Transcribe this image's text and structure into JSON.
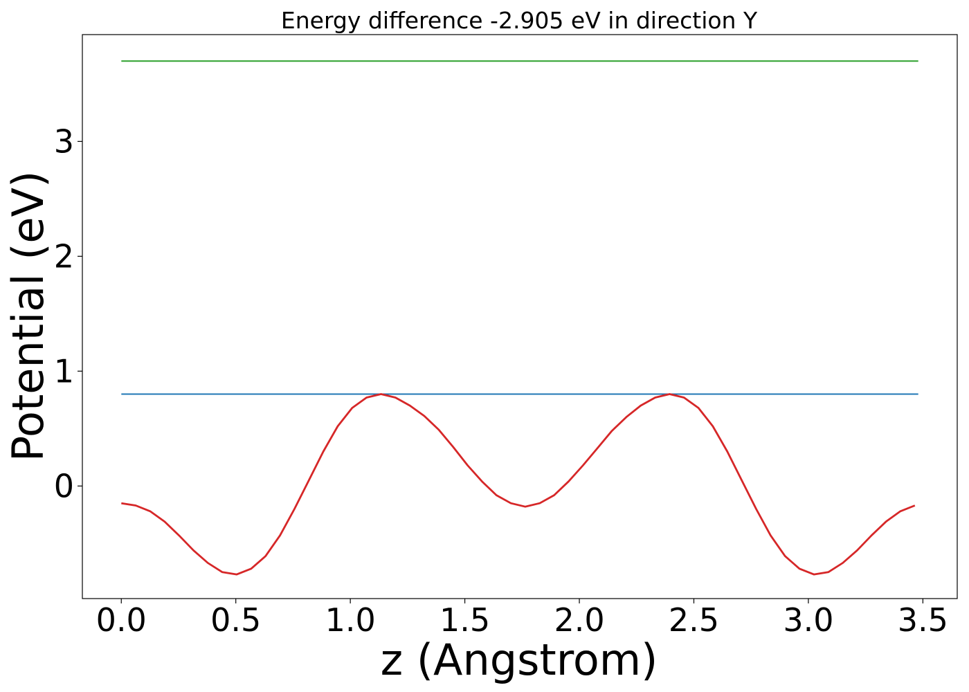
{
  "chart_data": {
    "type": "line",
    "title": "Energy difference -2.905 eV in direction Y",
    "xlabel": "z (Angstrom)",
    "ylabel": "Potential (eV)",
    "xlim": [
      -0.17,
      3.65
    ],
    "ylim": [
      -0.98,
      3.93
    ],
    "xticks": [
      0.0,
      0.5,
      1.0,
      1.5,
      2.0,
      2.5,
      3.0,
      3.5
    ],
    "xtick_labels": [
      "0.0",
      "0.5",
      "1.0",
      "1.5",
      "2.0",
      "2.5",
      "3.0",
      "3.5"
    ],
    "yticks": [
      0,
      1,
      2,
      3
    ],
    "ytick_labels": [
      "0",
      "1",
      "2",
      "3"
    ],
    "grid": false,
    "legend": "none",
    "series": [
      {
        "color": "#2ca02c",
        "style": "horizontal",
        "x": [
          0.0,
          3.48
        ],
        "values": [
          3.7,
          3.7
        ]
      },
      {
        "color": "#1f77b4",
        "style": "horizontal",
        "x": [
          0.0,
          3.48
        ],
        "values": [
          0.8,
          0.8
        ]
      },
      {
        "color": "#d62728",
        "style": "curve",
        "x": [
          0.0,
          0.063,
          0.126,
          0.189,
          0.252,
          0.315,
          0.378,
          0.441,
          0.504,
          0.567,
          0.63,
          0.693,
          0.756,
          0.819,
          0.882,
          0.945,
          1.008,
          1.071,
          1.134,
          1.197,
          1.26,
          1.323,
          1.386,
          1.449,
          1.512,
          1.575,
          1.638,
          1.701,
          1.764,
          1.827,
          1.89,
          1.953,
          2.016,
          2.079,
          2.142,
          2.205,
          2.268,
          2.331,
          2.394,
          2.457,
          2.52,
          2.583,
          2.646,
          2.709,
          2.772,
          2.835,
          2.898,
          2.961,
          3.024,
          3.087,
          3.15,
          3.213,
          3.276,
          3.339,
          3.402,
          3.465
        ],
        "values": [
          -0.15,
          -0.17,
          -0.22,
          -0.31,
          -0.43,
          -0.56,
          -0.67,
          -0.75,
          -0.77,
          -0.72,
          -0.61,
          -0.43,
          -0.2,
          0.05,
          0.3,
          0.52,
          0.68,
          0.77,
          0.8,
          0.77,
          0.7,
          0.61,
          0.49,
          0.34,
          0.18,
          0.04,
          -0.08,
          -0.15,
          -0.18,
          -0.15,
          -0.08,
          0.04,
          0.18,
          0.33,
          0.48,
          0.6,
          0.7,
          0.77,
          0.8,
          0.77,
          0.68,
          0.52,
          0.3,
          0.05,
          -0.2,
          -0.43,
          -0.61,
          -0.72,
          -0.77,
          -0.75,
          -0.67,
          -0.56,
          -0.43,
          -0.31,
          -0.22,
          -0.17
        ]
      }
    ]
  }
}
